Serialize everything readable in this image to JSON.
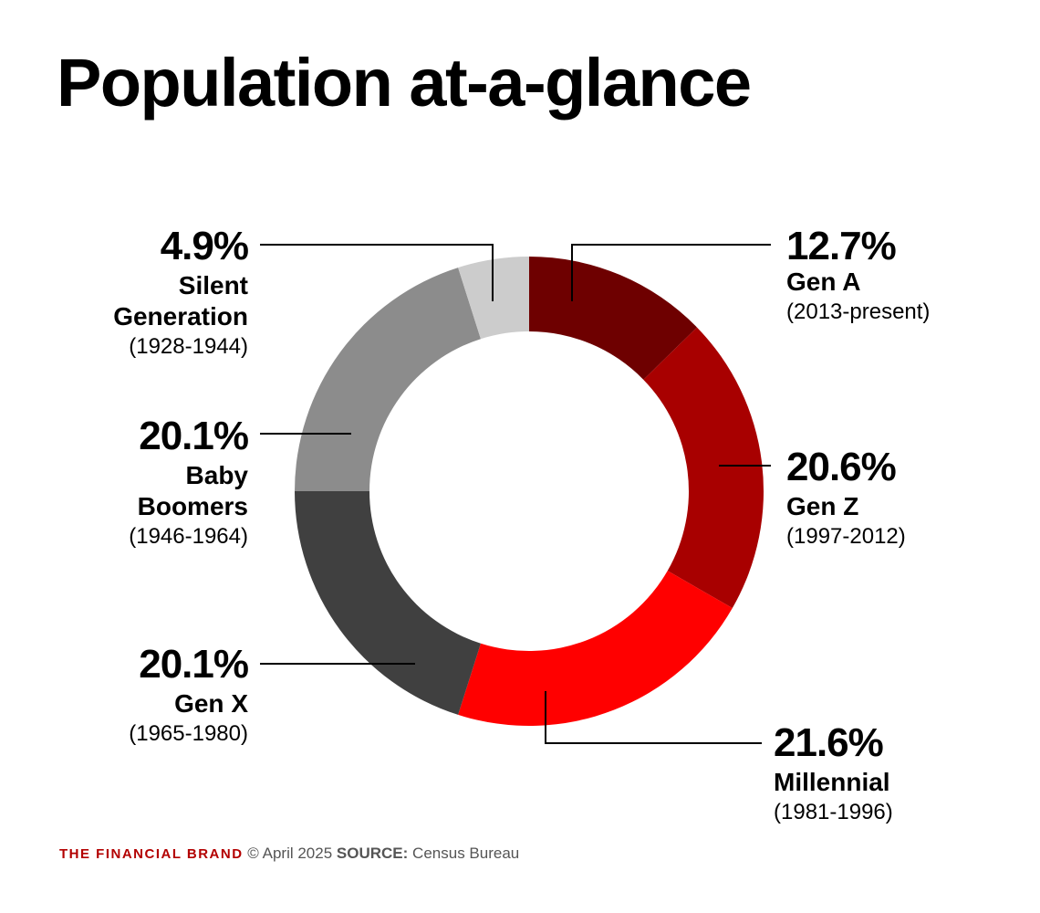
{
  "chart_data": {
    "type": "pie",
    "title": "Population at-a-glance",
    "donut": true,
    "start": "top",
    "direction": "clockwise",
    "slices": [
      {
        "label": "Gen A",
        "years": "(2013-present)",
        "value": 12.7,
        "value_label": "12.7%",
        "color": "#6e0000"
      },
      {
        "label": "Gen Z",
        "years": "(1997-2012)",
        "value": 20.6,
        "value_label": "20.6%",
        "color": "#a80000"
      },
      {
        "label": "Millennial",
        "years": "(1981-1996)",
        "value": 21.6,
        "value_label": "21.6%",
        "color": "#ff0000"
      },
      {
        "label": "Gen X",
        "years": "(1965-1980)",
        "value": 20.1,
        "value_label": "20.1%",
        "color": "#404040"
      },
      {
        "label": "Baby Boomers",
        "label_lines": [
          "Baby",
          "Boomers"
        ],
        "years": "(1946-1964)",
        "value": 20.1,
        "value_label": "20.1%",
        "color": "#8c8c8c"
      },
      {
        "label": "Silent Generation",
        "label_lines": [
          "Silent",
          "Generation"
        ],
        "years": "(1928-1944)",
        "value": 4.9,
        "value_label": "4.9%",
        "color": "#cccccc"
      }
    ]
  },
  "footer": {
    "brand": "THE FINANCIAL BRAND",
    "date": "© April 2025",
    "source_label": "SOURCE:",
    "source": "Census Bureau",
    "brand_color": "#b30000"
  }
}
